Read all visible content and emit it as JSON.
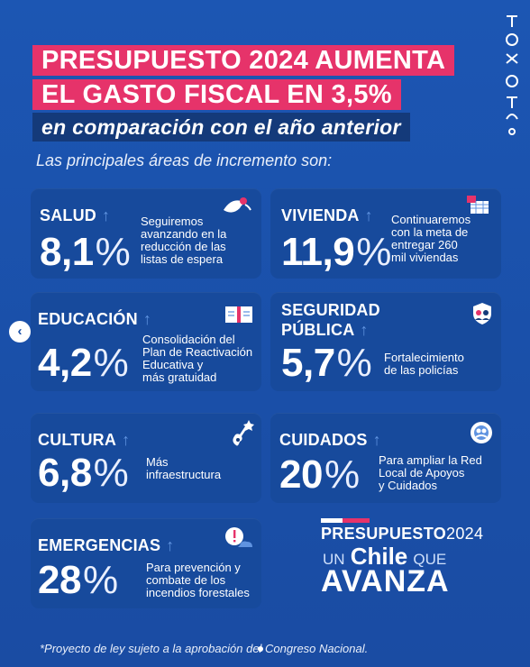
{
  "header": {
    "line1": "PRESUPUESTO 2024 AUMENTA",
    "line2": "EL GASTO FISCAL EN 3,5%",
    "line3": "en comparación con el año anterior",
    "subtitle": "Las principales áreas de incremento son:"
  },
  "cards": {
    "salud": {
      "title": "SALUD",
      "value": "8,1",
      "pct": "%",
      "desc": [
        "Seguiremos",
        "avanzando en la",
        "reducción de las",
        "listas de espera"
      ]
    },
    "vivienda": {
      "title": "VIVIENDA",
      "value": "11,9",
      "pct": "%",
      "desc": [
        "Continuaremos",
        "con la meta de",
        "entregar 260",
        "mil viviendas"
      ]
    },
    "educacion": {
      "title": "EDUCACIÓN",
      "value": "4,2",
      "pct": "%",
      "desc": [
        "Consolidación del",
        "Plan de Reactivación",
        "Educativa y",
        "más gratuidad"
      ]
    },
    "seguridad": {
      "title_l1": "SEGURIDAD",
      "title_l2": "PÚBLICA",
      "value": "5,7",
      "pct": "%",
      "desc": [
        "Fortalecimiento",
        "de las policías"
      ]
    },
    "cultura": {
      "title": "CULTURA",
      "value": "6,8",
      "pct": "%",
      "desc": [
        "Más",
        "infraestructura"
      ]
    },
    "cuidados": {
      "title": "CUIDADOS",
      "value": "20",
      "pct": "%",
      "desc": [
        "Para ampliar la Red",
        "Local de Apoyos",
        "y Cuidados"
      ]
    },
    "emergencias": {
      "title": "EMERGENCIAS",
      "value": "28",
      "pct": "%",
      "desc": [
        "Para prevención y",
        "combate de los",
        "incendios forestales"
      ]
    }
  },
  "logo": {
    "line1a": "PRESUPUESTO",
    "line1b": "2024",
    "line2a": "UN",
    "line2b": "Chile",
    "line2c": "QUE",
    "line3": "AVANZA"
  },
  "footer": "*Proyecto de ley sujeto a la aprobación del Congreso Nacional.",
  "nav": {
    "prev": "‹"
  },
  "colors": {
    "background": "#1a4fa8",
    "card": "#174a9c",
    "accent_pink": "#e6336a",
    "navy": "#143a7a",
    "arrow": "#5f93e0"
  }
}
